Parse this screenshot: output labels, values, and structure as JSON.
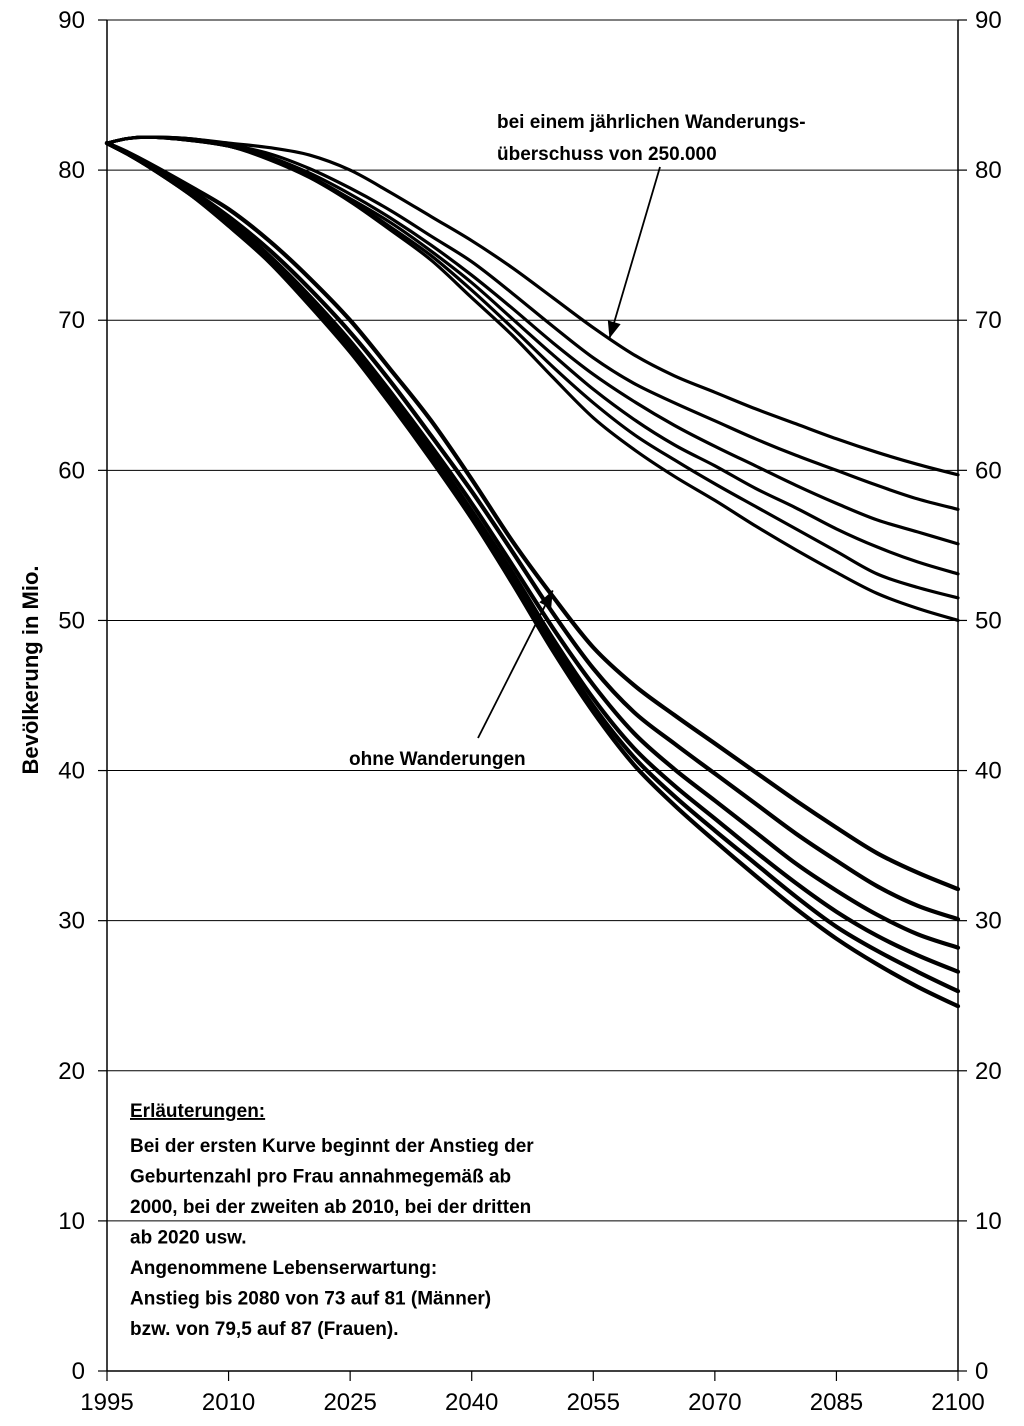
{
  "chart_data": {
    "type": "line",
    "ylabel": "Bevölkerung in Mio.",
    "xlabel": "",
    "xlim": [
      1995,
      2100
    ],
    "ylim": [
      0,
      90
    ],
    "x_ticks": [
      1995,
      2010,
      2025,
      2040,
      2055,
      2070,
      2085,
      2100
    ],
    "y_ticks": [
      0,
      10,
      20,
      30,
      40,
      50,
      60,
      70,
      80,
      90
    ],
    "grid": "horizontal",
    "secondary_y_axis": true,
    "x": [
      1995,
      1997.5,
      2000,
      2005,
      2010,
      2015,
      2020,
      2025,
      2030,
      2035,
      2040,
      2045,
      2050,
      2055,
      2060,
      2065,
      2070,
      2075,
      2080,
      2085,
      2090,
      2095,
      2100
    ],
    "series": [
      {
        "group": "mit Wanderungen",
        "values": [
          81.8,
          82.1,
          82.2,
          82.1,
          81.8,
          81.5,
          81.0,
          80.0,
          78.5,
          76.9,
          75.3,
          73.5,
          71.5,
          69.5,
          67.7,
          66.3,
          65.2,
          64.1,
          63.1,
          62.1,
          61.2,
          60.4,
          59.7
        ]
      },
      {
        "group": "mit Wanderungen",
        "values": [
          81.8,
          82.1,
          82.2,
          82.1,
          81.7,
          81.1,
          80.1,
          78.8,
          77.3,
          75.6,
          73.9,
          71.8,
          69.6,
          67.5,
          65.8,
          64.5,
          63.3,
          62.1,
          61.0,
          60.0,
          59.0,
          58.1,
          57.4
        ]
      },
      {
        "group": "mit Wanderungen",
        "values": [
          81.8,
          82.1,
          82.2,
          82.1,
          81.7,
          80.9,
          79.8,
          78.4,
          76.8,
          75.0,
          73.0,
          70.8,
          68.5,
          66.4,
          64.6,
          63.0,
          61.6,
          60.3,
          59.0,
          57.8,
          56.7,
          55.9,
          55.1
        ]
      },
      {
        "group": "mit Wanderungen",
        "values": [
          81.8,
          82.1,
          82.2,
          82.0,
          81.6,
          80.8,
          79.6,
          78.1,
          76.5,
          74.6,
          72.5,
          70.1,
          67.7,
          65.4,
          63.4,
          61.7,
          60.3,
          58.8,
          57.5,
          56.1,
          54.9,
          53.9,
          53.1
        ]
      },
      {
        "group": "mit Wanderungen",
        "values": [
          81.8,
          82.1,
          82.2,
          82.0,
          81.6,
          80.8,
          79.6,
          78.0,
          76.2,
          74.3,
          72.0,
          69.5,
          66.9,
          64.5,
          62.4,
          60.7,
          59.1,
          57.6,
          56.1,
          54.6,
          53.1,
          52.2,
          51.5
        ]
      },
      {
        "group": "mit Wanderungen",
        "values": [
          81.8,
          82.1,
          82.2,
          82.0,
          81.6,
          80.7,
          79.5,
          77.9,
          76.0,
          74.0,
          71.5,
          69.0,
          66.2,
          63.5,
          61.4,
          59.6,
          58.0,
          56.3,
          54.7,
          53.2,
          51.8,
          50.8,
          50.0
        ]
      },
      {
        "group": "ohne Wanderungen",
        "values": [
          81.8,
          81.2,
          80.5,
          79.0,
          77.4,
          75.3,
          72.8,
          70.0,
          66.7,
          63.3,
          59.4,
          55.3,
          51.6,
          48.2,
          45.7,
          43.7,
          41.8,
          39.9,
          38.0,
          36.2,
          34.5,
          33.2,
          32.1
        ]
      },
      {
        "group": "ohne Wanderungen",
        "values": [
          81.8,
          81.1,
          80.4,
          78.8,
          76.9,
          74.7,
          72.1,
          69.2,
          65.9,
          62.3,
          58.6,
          54.6,
          50.5,
          46.8,
          43.9,
          41.8,
          39.8,
          37.8,
          35.8,
          34.0,
          32.3,
          31.0,
          30.1
        ]
      },
      {
        "group": "ohne Wanderungen",
        "values": [
          81.8,
          81.1,
          80.3,
          78.6,
          76.7,
          74.3,
          71.6,
          68.6,
          65.2,
          61.6,
          57.8,
          53.7,
          49.5,
          45.7,
          42.5,
          40.1,
          38.0,
          35.9,
          33.8,
          32.0,
          30.4,
          29.1,
          28.2
        ]
      },
      {
        "group": "ohne Wanderungen",
        "values": [
          81.8,
          81.1,
          80.3,
          78.5,
          76.5,
          74.1,
          71.3,
          68.2,
          64.8,
          61.2,
          57.3,
          53.2,
          48.8,
          44.8,
          41.5,
          39.0,
          36.8,
          34.6,
          32.5,
          30.6,
          29.0,
          27.7,
          26.6
        ]
      },
      {
        "group": "ohne Wanderungen",
        "values": [
          81.8,
          81.1,
          80.3,
          78.5,
          76.4,
          74.0,
          71.1,
          68.0,
          64.6,
          60.9,
          57.0,
          52.8,
          48.4,
          44.3,
          40.9,
          38.3,
          36.0,
          33.8,
          31.6,
          29.6,
          28.0,
          26.6,
          25.3
        ]
      },
      {
        "group": "ohne Wanderungen",
        "values": [
          81.8,
          81.1,
          80.3,
          78.5,
          76.3,
          73.9,
          71.0,
          67.9,
          64.4,
          60.7,
          56.8,
          52.5,
          48.0,
          43.9,
          40.4,
          37.7,
          35.3,
          33.0,
          30.8,
          28.8,
          27.1,
          25.6,
          24.3
        ]
      }
    ],
    "annotations": [
      {
        "text_lines": [
          "bei einem jährlichen Wanderungs-",
          "überschuss von 250.000"
        ],
        "arrow_to": [
          2057,
          68.8
        ]
      },
      {
        "text_lines": [
          "ohne Wanderungen"
        ],
        "arrow_to": [
          2050,
          52
        ]
      }
    ],
    "explanation": {
      "heading": "Erläuterungen:",
      "lines": [
        "Bei der ersten Kurve beginnt der Anstieg der",
        "Geburtenzahl pro Frau annahmegemäß ab",
        "2000, bei der zweiten ab 2010, bei der dritten",
        "ab 2020 usw.",
        "Angenommene Lebenserwartung:",
        "Anstieg bis 2080 von 73 auf 81 (Männer)",
        "bzw. von 79,5 auf 87 (Frauen)."
      ]
    }
  }
}
